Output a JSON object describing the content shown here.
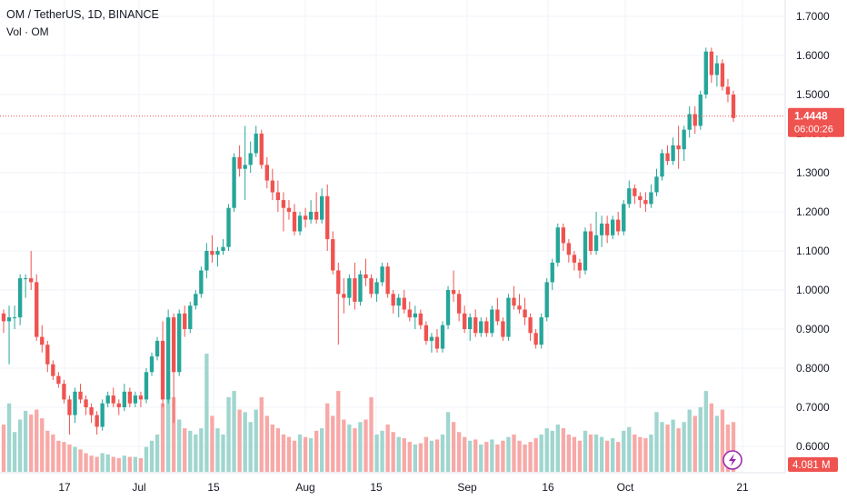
{
  "header": {
    "title": "OM / TetherUS, 1D, BINANCE",
    "volume_label": "Vol · OM"
  },
  "price_axis": {
    "ticks": [
      "1.7000",
      "1.6000",
      "1.5000",
      "1.4000",
      "1.3000",
      "1.2000",
      "1.1000",
      "1.0000",
      "0.9000",
      "0.8000",
      "0.7000",
      "0.6000"
    ],
    "last_price_label": "1.4448",
    "countdown_label": "06:00:26",
    "volume_badge": "4.081 M"
  },
  "time_axis": {
    "labels": [
      "17",
      "Jul",
      "15",
      "Aug",
      "15",
      "Sep",
      "16",
      "Oct",
      "21"
    ]
  },
  "colors": {
    "up": "#26a69a",
    "down": "#ef5350",
    "vol_up": "#9fd6cf",
    "vol_down": "#f7a9a7",
    "price_line": "#ef5350",
    "grid": "#f0f3fa",
    "text": "#131722",
    "lightning": "#9c27b0"
  },
  "icons": {
    "lightning": "lightning-icon"
  },
  "chart_data": {
    "type": "candlestick",
    "symbol": "OM / TetherUS",
    "interval": "1D",
    "exchange": "BINANCE",
    "ylim": [
      0.56,
      1.75
    ],
    "last_price": 1.4448,
    "grid": true,
    "candles": [
      [
        0.94,
        0.95,
        0.89,
        0.92,
        0.38
      ],
      [
        0.92,
        0.96,
        0.81,
        0.93,
        0.55
      ],
      [
        0.93,
        0.96,
        0.9,
        0.93,
        0.32
      ],
      [
        0.93,
        1.04,
        0.91,
        1.03,
        0.42
      ],
      [
        1.03,
        1.04,
        0.98,
        1.03,
        0.49
      ],
      [
        1.03,
        1.1,
        1.0,
        1.02,
        0.46
      ],
      [
        1.02,
        1.04,
        0.87,
        0.88,
        0.5
      ],
      [
        0.88,
        0.91,
        0.84,
        0.86,
        0.43
      ],
      [
        0.86,
        0.87,
        0.79,
        0.81,
        0.33
      ],
      [
        0.81,
        0.82,
        0.77,
        0.78,
        0.3
      ],
      [
        0.78,
        0.79,
        0.75,
        0.76,
        0.25
      ],
      [
        0.76,
        0.77,
        0.71,
        0.72,
        0.24
      ],
      [
        0.72,
        0.73,
        0.63,
        0.68,
        0.22
      ],
      [
        0.68,
        0.75,
        0.66,
        0.74,
        0.2
      ],
      [
        0.74,
        0.76,
        0.71,
        0.72,
        0.18
      ],
      [
        0.72,
        0.73,
        0.68,
        0.7,
        0.15
      ],
      [
        0.7,
        0.71,
        0.66,
        0.68,
        0.13
      ],
      [
        0.68,
        0.69,
        0.63,
        0.65,
        0.12
      ],
      [
        0.65,
        0.72,
        0.64,
        0.71,
        0.15
      ],
      [
        0.71,
        0.74,
        0.7,
        0.73,
        0.14
      ],
      [
        0.73,
        0.75,
        0.7,
        0.71,
        0.12
      ],
      [
        0.71,
        0.72,
        0.68,
        0.7,
        0.11
      ],
      [
        0.7,
        0.76,
        0.69,
        0.74,
        0.13
      ],
      [
        0.74,
        0.75,
        0.7,
        0.71,
        0.12
      ],
      [
        0.71,
        0.74,
        0.7,
        0.73,
        0.12
      ],
      [
        0.73,
        0.74,
        0.7,
        0.72,
        0.11
      ],
      [
        0.72,
        0.8,
        0.71,
        0.79,
        0.2
      ],
      [
        0.79,
        0.84,
        0.78,
        0.83,
        0.25
      ],
      [
        0.83,
        0.88,
        0.82,
        0.87,
        0.3
      ],
      [
        0.87,
        0.92,
        0.7,
        0.72,
        0.55
      ],
      [
        0.72,
        0.95,
        0.71,
        0.93,
        0.65
      ],
      [
        0.93,
        0.94,
        0.66,
        0.79,
        0.6
      ],
      [
        0.79,
        0.95,
        0.78,
        0.94,
        0.42
      ],
      [
        0.94,
        0.96,
        0.88,
        0.9,
        0.35
      ],
      [
        0.9,
        0.97,
        0.89,
        0.96,
        0.33
      ],
      [
        0.96,
        1.0,
        0.95,
        0.99,
        0.3
      ],
      [
        0.99,
        1.06,
        0.98,
        1.05,
        0.35
      ],
      [
        1.05,
        1.12,
        1.03,
        1.1,
        0.95
      ],
      [
        1.1,
        1.14,
        1.07,
        1.09,
        0.45
      ],
      [
        1.09,
        1.11,
        1.06,
        1.1,
        0.35
      ],
      [
        1.1,
        1.13,
        1.09,
        1.11,
        0.3
      ],
      [
        1.11,
        1.22,
        1.1,
        1.21,
        0.6
      ],
      [
        1.21,
        1.35,
        1.2,
        1.34,
        0.65
      ],
      [
        1.34,
        1.37,
        1.29,
        1.31,
        0.5
      ],
      [
        1.31,
        1.42,
        1.23,
        1.32,
        0.48
      ],
      [
        1.32,
        1.38,
        1.3,
        1.35,
        0.4
      ],
      [
        1.35,
        1.42,
        1.34,
        1.4,
        0.5
      ],
      [
        1.4,
        1.41,
        1.31,
        1.32,
        0.6
      ],
      [
        1.32,
        1.34,
        1.26,
        1.28,
        0.45
      ],
      [
        1.28,
        1.31,
        1.23,
        1.25,
        0.38
      ],
      [
        1.25,
        1.28,
        1.2,
        1.23,
        0.35
      ],
      [
        1.23,
        1.25,
        1.15,
        1.21,
        0.3
      ],
      [
        1.21,
        1.23,
        1.18,
        1.2,
        0.28
      ],
      [
        1.2,
        1.22,
        1.14,
        1.15,
        0.25
      ],
      [
        1.15,
        1.2,
        1.14,
        1.19,
        0.3
      ],
      [
        1.19,
        1.21,
        1.16,
        1.18,
        0.28
      ],
      [
        1.18,
        1.23,
        1.17,
        1.2,
        0.27
      ],
      [
        1.2,
        1.25,
        1.17,
        1.18,
        0.33
      ],
      [
        1.18,
        1.26,
        1.17,
        1.24,
        0.35
      ],
      [
        1.24,
        1.27,
        1.1,
        1.13,
        0.55
      ],
      [
        1.13,
        1.15,
        1.04,
        1.05,
        0.45
      ],
      [
        1.05,
        1.07,
        0.86,
        0.99,
        0.65
      ],
      [
        0.99,
        1.03,
        0.94,
        0.98,
        0.42
      ],
      [
        0.98,
        1.04,
        0.96,
        1.03,
        0.38
      ],
      [
        1.03,
        1.07,
        0.95,
        0.97,
        0.35
      ],
      [
        0.97,
        1.05,
        0.96,
        1.04,
        0.4
      ],
      [
        1.04,
        1.08,
        1.01,
        1.03,
        0.42
      ],
      [
        1.03,
        1.04,
        0.98,
        0.99,
        0.6
      ],
      [
        0.99,
        1.03,
        0.97,
        1.02,
        0.3
      ],
      [
        1.02,
        1.07,
        1.01,
        1.06,
        0.33
      ],
      [
        1.06,
        1.07,
        0.98,
        0.99,
        0.38
      ],
      [
        0.99,
        1.0,
        0.94,
        0.96,
        0.32
      ],
      [
        0.96,
        0.99,
        0.93,
        0.98,
        0.28
      ],
      [
        0.98,
        1.0,
        0.94,
        0.95,
        0.27
      ],
      [
        0.95,
        0.97,
        0.92,
        0.93,
        0.24
      ],
      [
        0.93,
        0.96,
        0.9,
        0.94,
        0.22
      ],
      [
        0.94,
        0.95,
        0.9,
        0.91,
        0.23
      ],
      [
        0.91,
        0.92,
        0.86,
        0.87,
        0.28
      ],
      [
        0.87,
        0.89,
        0.84,
        0.88,
        0.25
      ],
      [
        0.88,
        0.9,
        0.84,
        0.85,
        0.26
      ],
      [
        0.85,
        0.92,
        0.84,
        0.91,
        0.3
      ],
      [
        0.91,
        1.01,
        0.9,
        1.0,
        0.48
      ],
      [
        1.0,
        1.05,
        0.97,
        0.99,
        0.4
      ],
      [
        0.99,
        1.0,
        0.92,
        0.94,
        0.32
      ],
      [
        0.94,
        0.96,
        0.89,
        0.9,
        0.28
      ],
      [
        0.9,
        0.94,
        0.87,
        0.93,
        0.25
      ],
      [
        0.93,
        0.95,
        0.88,
        0.89,
        0.26
      ],
      [
        0.89,
        0.93,
        0.88,
        0.92,
        0.22
      ],
      [
        0.92,
        0.93,
        0.88,
        0.89,
        0.24
      ],
      [
        0.89,
        0.96,
        0.88,
        0.95,
        0.26
      ],
      [
        0.95,
        0.98,
        0.91,
        0.92,
        0.22
      ],
      [
        0.92,
        0.93,
        0.87,
        0.88,
        0.25
      ],
      [
        0.88,
        0.99,
        0.87,
        0.98,
        0.28
      ],
      [
        0.98,
        1.01,
        0.95,
        0.96,
        0.3
      ],
      [
        0.96,
        0.99,
        0.94,
        0.95,
        0.25
      ],
      [
        0.95,
        0.98,
        0.91,
        0.93,
        0.22
      ],
      [
        0.93,
        0.94,
        0.87,
        0.89,
        0.24
      ],
      [
        0.89,
        0.9,
        0.85,
        0.86,
        0.27
      ],
      [
        0.86,
        0.94,
        0.85,
        0.93,
        0.3
      ],
      [
        0.93,
        1.03,
        0.92,
        1.02,
        0.35
      ],
      [
        1.02,
        1.08,
        1.0,
        1.07,
        0.33
      ],
      [
        1.07,
        1.17,
        1.06,
        1.16,
        0.38
      ],
      [
        1.16,
        1.17,
        1.1,
        1.12,
        0.35
      ],
      [
        1.12,
        1.13,
        1.07,
        1.09,
        0.3
      ],
      [
        1.09,
        1.1,
        1.05,
        1.07,
        0.28
      ],
      [
        1.07,
        1.08,
        1.03,
        1.05,
        0.25
      ],
      [
        1.05,
        1.16,
        1.04,
        1.15,
        0.33
      ],
      [
        1.15,
        1.17,
        1.09,
        1.1,
        0.3
      ],
      [
        1.1,
        1.2,
        1.09,
        1.14,
        0.3
      ],
      [
        1.14,
        1.19,
        1.11,
        1.17,
        0.28
      ],
      [
        1.17,
        1.19,
        1.12,
        1.14,
        0.25
      ],
      [
        1.14,
        1.19,
        1.13,
        1.18,
        0.27
      ],
      [
        1.18,
        1.2,
        1.14,
        1.15,
        0.24
      ],
      [
        1.15,
        1.23,
        1.14,
        1.22,
        0.33
      ],
      [
        1.22,
        1.28,
        1.21,
        1.26,
        0.36
      ],
      [
        1.26,
        1.27,
        1.22,
        1.24,
        0.3
      ],
      [
        1.24,
        1.25,
        1.21,
        1.23,
        0.28
      ],
      [
        1.23,
        1.25,
        1.2,
        1.22,
        0.27
      ],
      [
        1.22,
        1.27,
        1.21,
        1.25,
        0.3
      ],
      [
        1.25,
        1.31,
        1.24,
        1.29,
        0.48
      ],
      [
        1.29,
        1.36,
        1.28,
        1.35,
        0.4
      ],
      [
        1.35,
        1.37,
        1.32,
        1.33,
        0.38
      ],
      [
        1.33,
        1.39,
        1.32,
        1.37,
        0.42
      ],
      [
        1.37,
        1.42,
        1.31,
        1.36,
        0.35
      ],
      [
        1.36,
        1.42,
        1.33,
        1.41,
        0.4
      ],
      [
        1.41,
        1.47,
        1.39,
        1.45,
        0.5
      ],
      [
        1.45,
        1.47,
        1.4,
        1.42,
        0.45
      ],
      [
        1.42,
        1.51,
        1.41,
        1.5,
        0.52
      ],
      [
        1.5,
        1.62,
        1.49,
        1.61,
        0.65
      ],
      [
        1.61,
        1.62,
        1.53,
        1.55,
        0.55
      ],
      [
        1.55,
        1.6,
        1.52,
        1.58,
        0.45
      ],
      [
        1.58,
        1.59,
        1.51,
        1.52,
        0.5
      ],
      [
        1.52,
        1.54,
        1.48,
        1.5,
        0.38
      ],
      [
        1.5,
        1.51,
        1.43,
        1.44,
        0.4
      ]
    ]
  }
}
